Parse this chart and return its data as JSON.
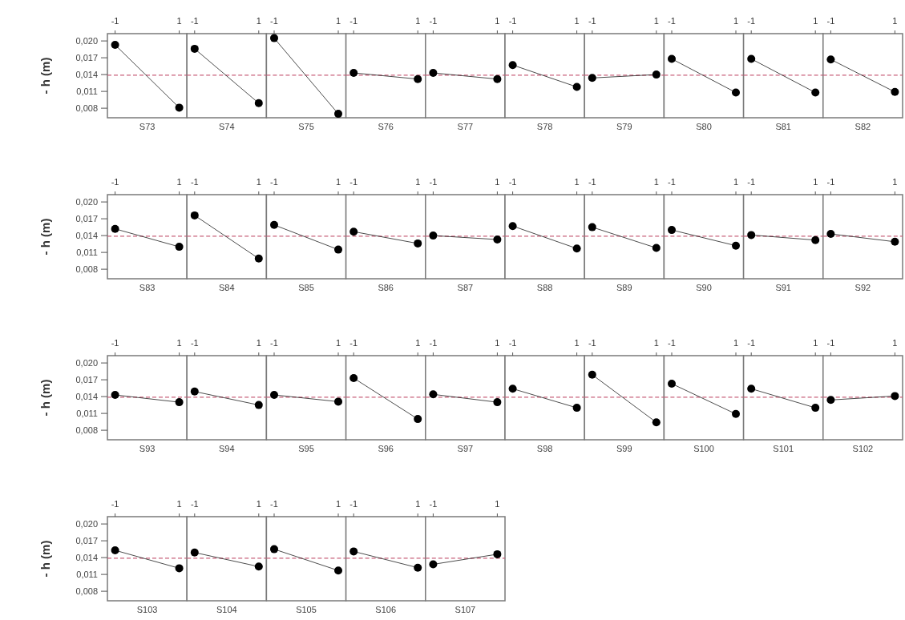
{
  "chart_data": [
    {
      "type": "line",
      "xlabel": "S73",
      "ylabel": "- h (m)",
      "categories": [
        "-1",
        "1"
      ],
      "values": [
        0.0193,
        0.0081
      ],
      "color": "#000000",
      "marker": "circle",
      "ylim": [
        0.0063,
        0.0213
      ],
      "yticks": [
        {
          "value": 0.008,
          "label": "0,008"
        },
        {
          "value": 0.011,
          "label": "0,011"
        },
        {
          "value": 0.014,
          "label": "0,014"
        },
        {
          "value": 0.017,
          "label": "0,017"
        },
        {
          "value": 0.02,
          "label": "0,020"
        }
      ],
      "ref_lines": [
        {
          "axis": "y",
          "value": 0.0139,
          "color": "#c8607a",
          "line_style": "dashed"
        }
      ]
    },
    {
      "type": "line",
      "xlabel": "S74",
      "categories": [
        "-1",
        "1"
      ],
      "values": [
        0.0186,
        0.0089
      ],
      "color": "#000000",
      "marker": "circle",
      "ylim": [
        0.0063,
        0.0213
      ],
      "tick_labels": "x",
      "ref_lines": [
        {
          "axis": "y",
          "value": 0.0139,
          "color": "#c8607a",
          "line_style": "dashed"
        }
      ]
    },
    {
      "type": "line",
      "xlabel": "S75",
      "categories": [
        "-1",
        "1"
      ],
      "values": [
        0.0205,
        0.007
      ],
      "color": "#000000",
      "marker": "circle",
      "ylim": [
        0.0063,
        0.0213
      ],
      "tick_labels": "x",
      "ref_lines": [
        {
          "axis": "y",
          "value": 0.0139,
          "color": "#c8607a",
          "line_style": "dashed"
        }
      ]
    },
    {
      "type": "line",
      "xlabel": "S76",
      "categories": [
        "-1",
        "1"
      ],
      "values": [
        0.0143,
        0.0132
      ],
      "color": "#000000",
      "marker": "circle",
      "ylim": [
        0.0063,
        0.0213
      ],
      "tick_labels": "x",
      "ref_lines": [
        {
          "axis": "y",
          "value": 0.0139,
          "color": "#c8607a",
          "line_style": "dashed"
        }
      ]
    },
    {
      "type": "line",
      "xlabel": "S77",
      "categories": [
        "-1",
        "1"
      ],
      "values": [
        0.0143,
        0.0132
      ],
      "color": "#000000",
      "marker": "circle",
      "ylim": [
        0.0063,
        0.0213
      ],
      "tick_labels": "x",
      "ref_lines": [
        {
          "axis": "y",
          "value": 0.0139,
          "color": "#c8607a",
          "line_style": "dashed"
        }
      ]
    },
    {
      "type": "line",
      "xlabel": "S78",
      "categories": [
        "-1",
        "1"
      ],
      "values": [
        0.0157,
        0.0118
      ],
      "color": "#000000",
      "marker": "circle",
      "ylim": [
        0.0063,
        0.0213
      ],
      "tick_labels": "x",
      "ref_lines": [
        {
          "axis": "y",
          "value": 0.0139,
          "color": "#c8607a",
          "line_style": "dashed"
        }
      ]
    },
    {
      "type": "line",
      "xlabel": "S79",
      "categories": [
        "-1",
        "1"
      ],
      "values": [
        0.0134,
        0.014
      ],
      "color": "#000000",
      "marker": "circle",
      "ylim": [
        0.0063,
        0.0213
      ],
      "tick_labels": "x",
      "ref_lines": [
        {
          "axis": "y",
          "value": 0.0139,
          "color": "#c8607a",
          "line_style": "dashed"
        }
      ]
    },
    {
      "type": "line",
      "xlabel": "S80",
      "categories": [
        "-1",
        "1"
      ],
      "values": [
        0.0168,
        0.0108
      ],
      "color": "#000000",
      "marker": "circle",
      "ylim": [
        0.0063,
        0.0213
      ],
      "tick_labels": "x",
      "ref_lines": [
        {
          "axis": "y",
          "value": 0.0139,
          "color": "#c8607a",
          "line_style": "dashed"
        }
      ]
    },
    {
      "type": "line",
      "xlabel": "S81",
      "categories": [
        "-1",
        "1"
      ],
      "values": [
        0.0168,
        0.0108
      ],
      "color": "#000000",
      "marker": "circle",
      "ylim": [
        0.0063,
        0.0213
      ],
      "tick_labels": "x",
      "ref_lines": [
        {
          "axis": "y",
          "value": 0.0139,
          "color": "#c8607a",
          "line_style": "dashed"
        }
      ]
    },
    {
      "type": "line",
      "xlabel": "S82",
      "categories": [
        "-1",
        "1"
      ],
      "values": [
        0.0167,
        0.0109
      ],
      "color": "#000000",
      "marker": "circle",
      "ylim": [
        0.0063,
        0.0213
      ],
      "tick_labels": "x",
      "ref_lines": [
        {
          "axis": "y",
          "value": 0.0139,
          "color": "#c8607a",
          "line_style": "dashed"
        }
      ]
    },
    {
      "type": "line",
      "xlabel": "S83",
      "ylabel": "- h (m)",
      "categories": [
        "-1",
        "1"
      ],
      "values": [
        0.0152,
        0.012
      ],
      "color": "#000000",
      "marker": "circle",
      "ylim": [
        0.0063,
        0.0213
      ],
      "yticks": [
        {
          "value": 0.008,
          "label": "0,008"
        },
        {
          "value": 0.011,
          "label": "0,011"
        },
        {
          "value": 0.014,
          "label": "0,014"
        },
        {
          "value": 0.017,
          "label": "0,017"
        },
        {
          "value": 0.02,
          "label": "0,020"
        }
      ],
      "ref_lines": [
        {
          "axis": "y",
          "value": 0.0139,
          "color": "#c8607a",
          "line_style": "dashed"
        }
      ]
    },
    {
      "type": "line",
      "xlabel": "S84",
      "categories": [
        "-1",
        "1"
      ],
      "values": [
        0.0176,
        0.0099
      ],
      "color": "#000000",
      "marker": "circle",
      "ylim": [
        0.0063,
        0.0213
      ],
      "tick_labels": "x",
      "ref_lines": [
        {
          "axis": "y",
          "value": 0.0139,
          "color": "#c8607a",
          "line_style": "dashed"
        }
      ]
    },
    {
      "type": "line",
      "xlabel": "S85",
      "categories": [
        "-1",
        "1"
      ],
      "values": [
        0.0159,
        0.0115
      ],
      "color": "#000000",
      "marker": "circle",
      "ylim": [
        0.0063,
        0.0213
      ],
      "tick_labels": "x",
      "ref_lines": [
        {
          "axis": "y",
          "value": 0.0139,
          "color": "#c8607a",
          "line_style": "dashed"
        }
      ]
    },
    {
      "type": "line",
      "xlabel": "S86",
      "categories": [
        "-1",
        "1"
      ],
      "values": [
        0.0147,
        0.0126
      ],
      "color": "#000000",
      "marker": "circle",
      "ylim": [
        0.0063,
        0.0213
      ],
      "tick_labels": "x",
      "ref_lines": [
        {
          "axis": "y",
          "value": 0.0139,
          "color": "#c8607a",
          "line_style": "dashed"
        }
      ]
    },
    {
      "type": "line",
      "xlabel": "S87",
      "categories": [
        "-1",
        "1"
      ],
      "values": [
        0.014,
        0.0133
      ],
      "color": "#000000",
      "marker": "circle",
      "ylim": [
        0.0063,
        0.0213
      ],
      "tick_labels": "x",
      "ref_lines": [
        {
          "axis": "y",
          "value": 0.0139,
          "color": "#c8607a",
          "line_style": "dashed"
        }
      ]
    },
    {
      "type": "line",
      "xlabel": "S88",
      "categories": [
        "-1",
        "1"
      ],
      "values": [
        0.0157,
        0.0117
      ],
      "color": "#000000",
      "marker": "circle",
      "ylim": [
        0.0063,
        0.0213
      ],
      "tick_labels": "x",
      "ref_lines": [
        {
          "axis": "y",
          "value": 0.0139,
          "color": "#c8607a",
          "line_style": "dashed"
        }
      ]
    },
    {
      "type": "line",
      "xlabel": "S89",
      "categories": [
        "-1",
        "1"
      ],
      "values": [
        0.0155,
        0.0118
      ],
      "color": "#000000",
      "marker": "circle",
      "ylim": [
        0.0063,
        0.0213
      ],
      "tick_labels": "x",
      "ref_lines": [
        {
          "axis": "y",
          "value": 0.0139,
          "color": "#c8607a",
          "line_style": "dashed"
        }
      ]
    },
    {
      "type": "line",
      "xlabel": "S90",
      "categories": [
        "-1",
        "1"
      ],
      "values": [
        0.015,
        0.0122
      ],
      "color": "#000000",
      "marker": "circle",
      "ylim": [
        0.0063,
        0.0213
      ],
      "tick_labels": "x",
      "ref_lines": [
        {
          "axis": "y",
          "value": 0.0139,
          "color": "#c8607a",
          "line_style": "dashed"
        }
      ]
    },
    {
      "type": "line",
      "xlabel": "S91",
      "categories": [
        "-1",
        "1"
      ],
      "values": [
        0.0141,
        0.0132
      ],
      "color": "#000000",
      "marker": "circle",
      "ylim": [
        0.0063,
        0.0213
      ],
      "tick_labels": "x",
      "ref_lines": [
        {
          "axis": "y",
          "value": 0.0139,
          "color": "#c8607a",
          "line_style": "dashed"
        }
      ]
    },
    {
      "type": "line",
      "xlabel": "S92",
      "categories": [
        "-1",
        "1"
      ],
      "values": [
        0.0143,
        0.0129
      ],
      "color": "#000000",
      "marker": "circle",
      "ylim": [
        0.0063,
        0.0213
      ],
      "tick_labels": "x",
      "ref_lines": [
        {
          "axis": "y",
          "value": 0.0139,
          "color": "#c8607a",
          "line_style": "dashed"
        }
      ]
    },
    {
      "type": "line",
      "xlabel": "S93",
      "ylabel": "- h (m)",
      "categories": [
        "-1",
        "1"
      ],
      "values": [
        0.0143,
        0.013
      ],
      "color": "#000000",
      "marker": "circle",
      "ylim": [
        0.0063,
        0.0213
      ],
      "yticks": [
        {
          "value": 0.008,
          "label": "0,008"
        },
        {
          "value": 0.011,
          "label": "0,011"
        },
        {
          "value": 0.014,
          "label": "0,014"
        },
        {
          "value": 0.017,
          "label": "0,017"
        },
        {
          "value": 0.02,
          "label": "0,020"
        }
      ],
      "ref_lines": [
        {
          "axis": "y",
          "value": 0.0139,
          "color": "#c8607a",
          "line_style": "dashed"
        }
      ]
    },
    {
      "type": "line",
      "xlabel": "S94",
      "categories": [
        "-1",
        "1"
      ],
      "values": [
        0.0149,
        0.0125
      ],
      "color": "#000000",
      "marker": "circle",
      "ylim": [
        0.0063,
        0.0213
      ],
      "tick_labels": "x",
      "ref_lines": [
        {
          "axis": "y",
          "value": 0.0139,
          "color": "#c8607a",
          "line_style": "dashed"
        }
      ]
    },
    {
      "type": "line",
      "xlabel": "S95",
      "categories": [
        "-1",
        "1"
      ],
      "values": [
        0.0143,
        0.0131
      ],
      "color": "#000000",
      "marker": "circle",
      "ylim": [
        0.0063,
        0.0213
      ],
      "tick_labels": "x",
      "ref_lines": [
        {
          "axis": "y",
          "value": 0.0139,
          "color": "#c8607a",
          "line_style": "dashed"
        }
      ]
    },
    {
      "type": "line",
      "xlabel": "S96",
      "categories": [
        "-1",
        "1"
      ],
      "values": [
        0.0173,
        0.01
      ],
      "color": "#000000",
      "marker": "circle",
      "ylim": [
        0.0063,
        0.0213
      ],
      "tick_labels": "x",
      "ref_lines": [
        {
          "axis": "y",
          "value": 0.0139,
          "color": "#c8607a",
          "line_style": "dashed"
        }
      ]
    },
    {
      "type": "line",
      "xlabel": "S97",
      "categories": [
        "-1",
        "1"
      ],
      "values": [
        0.0144,
        0.013
      ],
      "color": "#000000",
      "marker": "circle",
      "ylim": [
        0.0063,
        0.0213
      ],
      "tick_labels": "x",
      "ref_lines": [
        {
          "axis": "y",
          "value": 0.0139,
          "color": "#c8607a",
          "line_style": "dashed"
        }
      ]
    },
    {
      "type": "line",
      "xlabel": "S98",
      "categories": [
        "-1",
        "1"
      ],
      "values": [
        0.0154,
        0.012
      ],
      "color": "#000000",
      "marker": "circle",
      "ylim": [
        0.0063,
        0.0213
      ],
      "tick_labels": "x",
      "ref_lines": [
        {
          "axis": "y",
          "value": 0.0139,
          "color": "#c8607a",
          "line_style": "dashed"
        }
      ]
    },
    {
      "type": "line",
      "xlabel": "S99",
      "categories": [
        "-1",
        "1"
      ],
      "values": [
        0.0179,
        0.0094
      ],
      "color": "#000000",
      "marker": "circle",
      "ylim": [
        0.0063,
        0.0213
      ],
      "tick_labels": "x",
      "ref_lines": [
        {
          "axis": "y",
          "value": 0.0139,
          "color": "#c8607a",
          "line_style": "dashed"
        }
      ]
    },
    {
      "type": "line",
      "xlabel": "S100",
      "categories": [
        "-1",
        "1"
      ],
      "values": [
        0.0163,
        0.0109
      ],
      "color": "#000000",
      "marker": "circle",
      "ylim": [
        0.0063,
        0.0213
      ],
      "tick_labels": "x",
      "ref_lines": [
        {
          "axis": "y",
          "value": 0.0139,
          "color": "#c8607a",
          "line_style": "dashed"
        }
      ]
    },
    {
      "type": "line",
      "xlabel": "S101",
      "categories": [
        "-1",
        "1"
      ],
      "values": [
        0.0154,
        0.012
      ],
      "color": "#000000",
      "marker": "circle",
      "ylim": [
        0.0063,
        0.0213
      ],
      "tick_labels": "x",
      "ref_lines": [
        {
          "axis": "y",
          "value": 0.0139,
          "color": "#c8607a",
          "line_style": "dashed"
        }
      ]
    },
    {
      "type": "line",
      "xlabel": "S102",
      "categories": [
        "-1",
        "1"
      ],
      "values": [
        0.0134,
        0.0141
      ],
      "color": "#000000",
      "marker": "circle",
      "ylim": [
        0.0063,
        0.0213
      ],
      "tick_labels": "x",
      "ref_lines": [
        {
          "axis": "y",
          "value": 0.0139,
          "color": "#c8607a",
          "line_style": "dashed"
        }
      ]
    },
    {
      "type": "line",
      "xlabel": "S103",
      "ylabel": "- h (m)",
      "categories": [
        "-1",
        "1"
      ],
      "values": [
        0.0153,
        0.0121
      ],
      "color": "#000000",
      "marker": "circle",
      "ylim": [
        0.0063,
        0.0213
      ],
      "yticks": [
        {
          "value": 0.008,
          "label": "0,008"
        },
        {
          "value": 0.011,
          "label": "0,011"
        },
        {
          "value": 0.014,
          "label": "0,014"
        },
        {
          "value": 0.017,
          "label": "0,017"
        },
        {
          "value": 0.02,
          "label": "0,020"
        }
      ],
      "ref_lines": [
        {
          "axis": "y",
          "value": 0.0139,
          "color": "#c8607a",
          "line_style": "dashed"
        }
      ]
    },
    {
      "type": "line",
      "xlabel": "S104",
      "categories": [
        "-1",
        "1"
      ],
      "values": [
        0.0149,
        0.0124
      ],
      "color": "#000000",
      "marker": "circle",
      "ylim": [
        0.0063,
        0.0213
      ],
      "tick_labels": "x",
      "ref_lines": [
        {
          "axis": "y",
          "value": 0.0139,
          "color": "#c8607a",
          "line_style": "dashed"
        }
      ]
    },
    {
      "type": "line",
      "xlabel": "S105",
      "categories": [
        "-1",
        "1"
      ],
      "values": [
        0.0155,
        0.0117
      ],
      "color": "#000000",
      "marker": "circle",
      "ylim": [
        0.0063,
        0.0213
      ],
      "tick_labels": "x",
      "ref_lines": [
        {
          "axis": "y",
          "value": 0.0139,
          "color": "#c8607a",
          "line_style": "dashed"
        }
      ]
    },
    {
      "type": "line",
      "xlabel": "S106",
      "categories": [
        "-1",
        "1"
      ],
      "values": [
        0.0151,
        0.0122
      ],
      "color": "#000000",
      "marker": "circle",
      "ylim": [
        0.0063,
        0.0213
      ],
      "tick_labels": "x",
      "ref_lines": [
        {
          "axis": "y",
          "value": 0.0139,
          "color": "#c8607a",
          "line_style": "dashed"
        }
      ]
    },
    {
      "type": "line",
      "xlabel": "S107",
      "categories": [
        "-1",
        "1"
      ],
      "values": [
        0.0128,
        0.0146
      ],
      "color": "#000000",
      "marker": "circle",
      "ylim": [
        0.0063,
        0.0213
      ],
      "tick_labels": "x",
      "ref_lines": [
        {
          "axis": "y",
          "value": 0.0139,
          "color": "#c8607a",
          "line_style": "dashed"
        }
      ]
    }
  ]
}
